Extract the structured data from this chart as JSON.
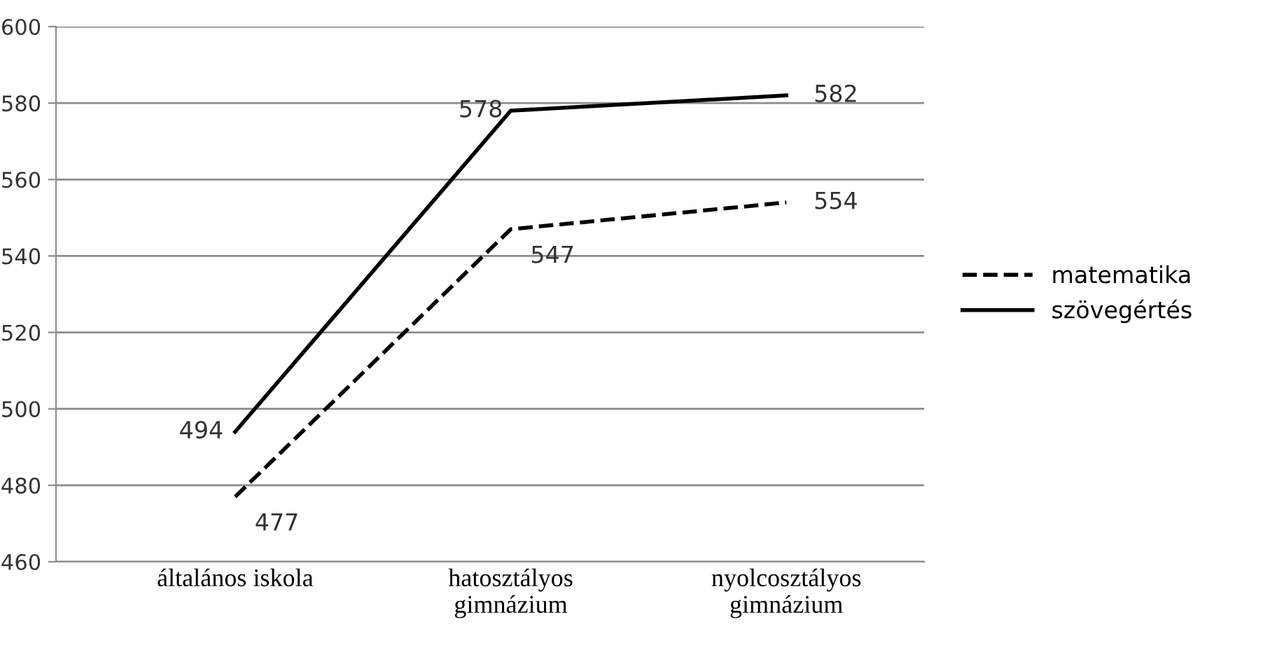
{
  "chart_data": {
    "type": "line",
    "categories": [
      "általános iskola",
      "hatosztályos\ngimnázium",
      "nyolcosztályos\ngimnázium"
    ],
    "series": [
      {
        "name": "matematika",
        "color": "#000000",
        "values": [
          477,
          547,
          554
        ],
        "line_style": "dashed"
      },
      {
        "name": "szövegértés",
        "color": "#000000",
        "values": [
          494,
          578,
          582
        ],
        "line_style": "solid"
      }
    ],
    "ylim": [
      460,
      600
    ],
    "yticks": [
      460,
      480,
      500,
      520,
      540,
      560,
      580,
      600
    ],
    "grid": "y",
    "legend": "right",
    "data_labels": true,
    "marker": "none"
  }
}
